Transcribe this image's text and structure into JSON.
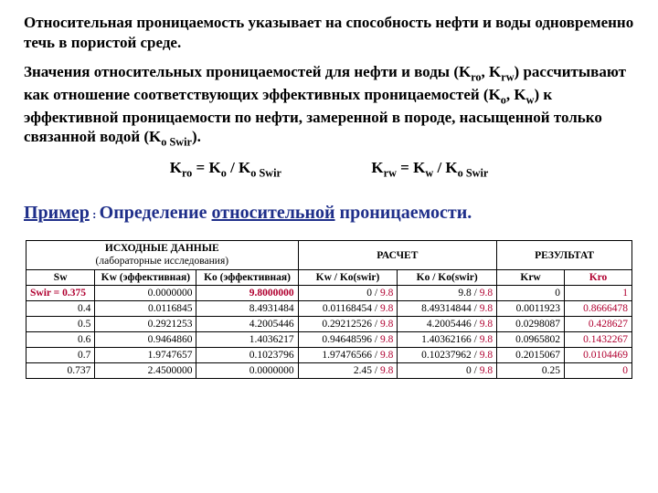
{
  "text": {
    "p1": "Относительная проницаемость указывает на способность нефти и воды одновременно течь в пористой среде.",
    "p2a": "Значения относительных проницаемостей для нефти и воды (K",
    "p2b": ", K",
    "p2c": ") рассчитывают как отношение соответствующих эффективных проницаемостей (K",
    "p2d": ", K",
    "p2e": ") к эффективной проницаемости по нефти, замеренной в породе, насыщенной только связанной водой (K",
    "p2f": ").",
    "sub_ro": "ro",
    "sub_rw": "rw",
    "sub_o": "o",
    "sub_w": "w",
    "sub_oswir": "o Swir"
  },
  "formulas": {
    "f1a": "K",
    "f1b": " = K",
    "f1c": " / K",
    "f2a": "K",
    "f2b": " = K",
    "f2c": " / K"
  },
  "example": {
    "word1": "Пример",
    "colon": " : ",
    "word2": "Определение ",
    "word3": "относительной",
    "word4": " проницаемости."
  },
  "table": {
    "hdr_source_main": "ИСХОДНЫЕ ДАННЫЕ",
    "hdr_source_sub": "(лабораторные исследования)",
    "hdr_calc": "РАСЧЕТ",
    "hdr_result": "РЕЗУЛЬТАТ",
    "col_sw": "Sw",
    "col_kw": "Kw (эффективная)",
    "col_ko": "Ko (эффективная)",
    "col_c1": "Kw / Ko(swir)",
    "col_c2": "Ko / Ko(swir)",
    "col_krw": "Krw",
    "col_kro": "Kro",
    "rows": [
      {
        "sw": "Swir = 0.375",
        "sw_red": true,
        "kw": "0.0000000",
        "ko": "9.8000000",
        "ko_red": true,
        "c1a": "0",
        "c1b": "9.8",
        "c2a": "9.8",
        "c2b": "9.8",
        "krw": "0",
        "kro": "1"
      },
      {
        "sw": "0.4",
        "kw": "0.0116845",
        "ko": "8.4931484",
        "c1a": "0.01168454",
        "c1b": "9.8",
        "c2a": "8.49314844",
        "c2b": "9.8",
        "krw": "0.0011923",
        "kro": "0.8666478"
      },
      {
        "sw": "0.5",
        "kw": "0.2921253",
        "ko": "4.2005446",
        "c1a": "0.29212526",
        "c1b": "9.8",
        "c2a": "4.2005446",
        "c2b": "9.8",
        "krw": "0.0298087",
        "kro": "0.428627"
      },
      {
        "sw": "0.6",
        "kw": "0.9464860",
        "ko": "1.4036217",
        "c1a": "0.94648596",
        "c1b": "9.8",
        "c2a": "1.40362166",
        "c2b": "9.8",
        "krw": "0.0965802",
        "kro": "0.1432267"
      },
      {
        "sw": "0.7",
        "kw": "1.9747657",
        "ko": "0.1023796",
        "c1a": "1.97476566",
        "c1b": "9.8",
        "c2a": "0.10237962",
        "c2b": "9.8",
        "krw": "0.2015067",
        "kro": "0.0104469"
      },
      {
        "sw": "0.737",
        "kw": "2.4500000",
        "ko": "0.0000000",
        "c1a": "2.45",
        "c1b": "9.8",
        "c2a": "0",
        "c2b": "9.8",
        "krw": "0.25",
        "kro": "0"
      }
    ]
  }
}
